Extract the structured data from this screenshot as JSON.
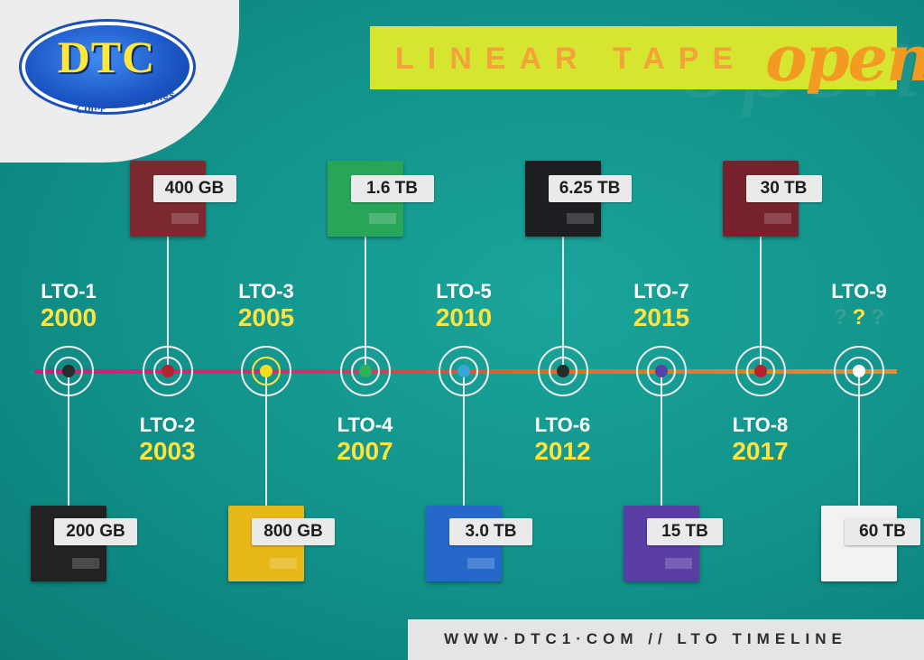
{
  "brand": {
    "logo_text": "DTC",
    "logo_subtitle": "Computer Supplies"
  },
  "banner": {
    "title": "LINEAR TAPE",
    "script_word": "open"
  },
  "colors": {
    "background": "#119189",
    "banner": "#d6e630",
    "accent_orange": "#f39a22",
    "year_yellow": "#ffe43e"
  },
  "timeline": [
    {
      "name": "LTO-1",
      "year": "2000",
      "capacity": "200 GB",
      "cart_color": "#222222",
      "node_color": "#2a2a2a"
    },
    {
      "name": "LTO-2",
      "year": "2003",
      "capacity": "400 GB",
      "cart_color": "#7c2a30",
      "node_color": "#b3232e"
    },
    {
      "name": "LTO-3",
      "year": "2005",
      "capacity": "800 GB",
      "cart_color": "#e8b71a",
      "node_color": "#f2de1e"
    },
    {
      "name": "LTO-4",
      "year": "2007",
      "capacity": "1.6 TB",
      "cart_color": "#27a65a",
      "node_color": "#2fb35a"
    },
    {
      "name": "LTO-5",
      "year": "2010",
      "capacity": "3.0 TB",
      "cart_color": "#2568c9",
      "node_color": "#3aa5d6"
    },
    {
      "name": "LTO-6",
      "year": "2012",
      "capacity": "6.25 TB",
      "cart_color": "#1e1e22",
      "node_color": "#2a2a2a"
    },
    {
      "name": "LTO-7",
      "year": "2015",
      "capacity": "15 TB",
      "cart_color": "#5a3ea6",
      "node_color": "#5b3fa8"
    },
    {
      "name": "LTO-8",
      "year": "2017",
      "capacity": "30 TB",
      "cart_color": "#76222d",
      "node_color": "#b3232e"
    },
    {
      "name": "LTO-9",
      "year": "? ? ?",
      "capacity": "60 TB",
      "cart_color": "#f2f2f4",
      "node_color": "#ffffff"
    }
  ],
  "footer": {
    "text": "WWW·DTC1·COM // LTO TIMELINE"
  }
}
